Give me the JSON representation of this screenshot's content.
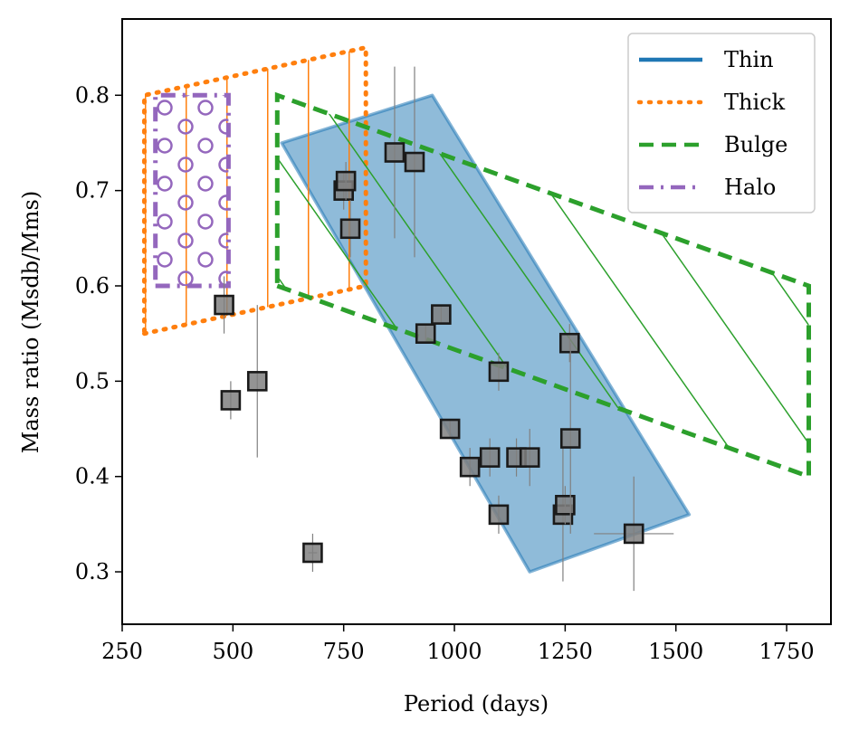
{
  "chart_data": {
    "type": "scatter",
    "title": "",
    "xlabel": "Period (days)",
    "ylabel": "Mass ratio (Msdb/Mms)",
    "xlim": [
      250,
      1850
    ],
    "ylim": [
      0.245,
      0.88
    ],
    "xticks": [
      250,
      500,
      750,
      1000,
      1250,
      1500,
      1750
    ],
    "xtick_labels": [
      "250",
      "500",
      "750",
      "1000",
      "1250",
      "1500",
      "1750"
    ],
    "yticks": [
      0.3,
      0.4,
      0.5,
      0.6,
      0.7,
      0.8
    ],
    "ytick_labels": [
      "0.3",
      "0.4",
      "0.5",
      "0.6",
      "0.7",
      "0.8"
    ],
    "grid": false,
    "legend_position": "top-right",
    "legend": [
      {
        "label": "Thin",
        "style": "solid",
        "color": "#1f77b4"
      },
      {
        "label": "Thick",
        "style": "dotted",
        "color": "#ff7f0e"
      },
      {
        "label": "Bulge",
        "style": "dashed",
        "color": "#2ca02c"
      },
      {
        "label": "Halo",
        "style": "dashdot",
        "color": "#9467bd"
      }
    ],
    "regions": [
      {
        "name": "Thin",
        "color": "#1f77b4",
        "fill": "solid",
        "vertices": [
          [
            610,
            0.75
          ],
          [
            950,
            0.8
          ],
          [
            1530,
            0.36
          ],
          [
            1170,
            0.3
          ]
        ]
      },
      {
        "name": "Thick",
        "color": "#ff7f0e",
        "fill": "vertical-lines",
        "vertices": [
          [
            300,
            0.55
          ],
          [
            800,
            0.6
          ],
          [
            800,
            0.85
          ],
          [
            300,
            0.8
          ]
        ]
      },
      {
        "name": "Bulge",
        "color": "#2ca02c",
        "fill": "diagonal-lines",
        "vertices": [
          [
            600,
            0.6
          ],
          [
            1800,
            0.4
          ],
          [
            1800,
            0.6
          ],
          [
            600,
            0.8
          ]
        ]
      },
      {
        "name": "Halo",
        "color": "#9467bd",
        "fill": "circles",
        "vertices": [
          [
            325,
            0.6
          ],
          [
            490,
            0.6
          ],
          [
            490,
            0.8
          ],
          [
            325,
            0.8
          ]
        ]
      }
    ],
    "points": [
      {
        "x": 480,
        "y": 0.58,
        "yerr": 0.03,
        "xerr": 0
      },
      {
        "x": 495,
        "y": 0.48,
        "yerr": 0.02,
        "xerr": 0
      },
      {
        "x": 555,
        "y": 0.5,
        "yerr": 0.08,
        "xerr": 0
      },
      {
        "x": 680,
        "y": 0.32,
        "yerr": 0.02,
        "xerr": 10
      },
      {
        "x": 750,
        "y": 0.7,
        "yerr": 0.02,
        "xerr": 0
      },
      {
        "x": 755,
        "y": 0.71,
        "yerr": 0.02,
        "xerr": 0
      },
      {
        "x": 765,
        "y": 0.66,
        "yerr": 0.03,
        "xerr": 0
      },
      {
        "x": 865,
        "y": 0.74,
        "yerr": 0.09,
        "xerr": 0
      },
      {
        "x": 910,
        "y": 0.73,
        "yerr": 0.1,
        "xerr": 0
      },
      {
        "x": 935,
        "y": 0.55,
        "yerr": 0.01,
        "xerr": 0
      },
      {
        "x": 970,
        "y": 0.57,
        "yerr": 0.01,
        "xerr": 0
      },
      {
        "x": 990,
        "y": 0.45,
        "yerr": 0.01,
        "xerr": 0
      },
      {
        "x": 1035,
        "y": 0.41,
        "yerr": 0.02,
        "xerr": 0
      },
      {
        "x": 1080,
        "y": 0.42,
        "yerr": 0.02,
        "xerr": 0
      },
      {
        "x": 1100,
        "y": 0.51,
        "yerr": 0.02,
        "xerr": 0
      },
      {
        "x": 1100,
        "y": 0.36,
        "yerr": 0.02,
        "xerr": 0
      },
      {
        "x": 1140,
        "y": 0.42,
        "yerr": 0.02,
        "xerr": 0
      },
      {
        "x": 1170,
        "y": 0.42,
        "yerr": 0.03,
        "xerr": 0
      },
      {
        "x": 1245,
        "y": 0.36,
        "yerr": 0.07,
        "xerr": 0
      },
      {
        "x": 1250,
        "y": 0.37,
        "yerr": 0.02,
        "xerr": 0
      },
      {
        "x": 1260,
        "y": 0.54,
        "yerr": 0.02,
        "xerr": 0
      },
      {
        "x": 1262,
        "y": 0.44,
        "yerr": 0.1,
        "xerr": 0
      },
      {
        "x": 1405,
        "y": 0.34,
        "yerr": 0.06,
        "xerr": 90
      }
    ]
  }
}
